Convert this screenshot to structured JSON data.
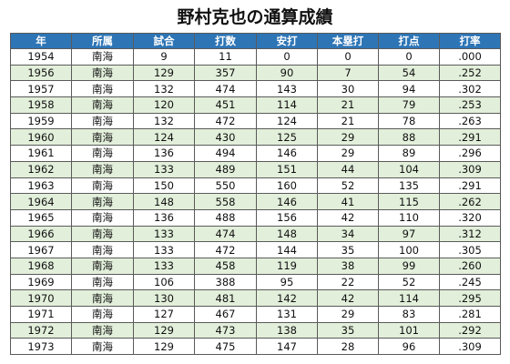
{
  "title": "野村克也の通算成績",
  "columns": [
    "年",
    "所属",
    "試合",
    "打数",
    "安打",
    "本塁打",
    "打点",
    "打率"
  ],
  "rows": [
    [
      "1954",
      "南海",
      "9",
      "11",
      "0",
      "0",
      "0",
      ".000"
    ],
    [
      "1956",
      "南海",
      "129",
      "357",
      "90",
      "7",
      "54",
      ".252"
    ],
    [
      "1957",
      "南海",
      "132",
      "474",
      "143",
      "30",
      "94",
      ".302"
    ],
    [
      "1958",
      "南海",
      "120",
      "451",
      "114",
      "21",
      "79",
      ".253"
    ],
    [
      "1959",
      "南海",
      "132",
      "472",
      "124",
      "21",
      "78",
      ".263"
    ],
    [
      "1960",
      "南海",
      "124",
      "430",
      "125",
      "29",
      "88",
      ".291"
    ],
    [
      "1961",
      "南海",
      "136",
      "494",
      "146",
      "29",
      "89",
      ".296"
    ],
    [
      "1962",
      "南海",
      "133",
      "489",
      "151",
      "44",
      "104",
      ".309"
    ],
    [
      "1963",
      "南海",
      "150",
      "550",
      "160",
      "52",
      "135",
      ".291"
    ],
    [
      "1964",
      "南海",
      "148",
      "558",
      "146",
      "41",
      "115",
      ".262"
    ],
    [
      "1965",
      "南海",
      "136",
      "488",
      "156",
      "42",
      "110",
      ".320"
    ],
    [
      "1966",
      "南海",
      "133",
      "474",
      "148",
      "34",
      "97",
      ".312"
    ],
    [
      "1967",
      "南海",
      "133",
      "472",
      "144",
      "35",
      "100",
      ".305"
    ],
    [
      "1968",
      "南海",
      "133",
      "458",
      "119",
      "38",
      "99",
      ".260"
    ],
    [
      "1969",
      "南海",
      "106",
      "388",
      "95",
      "22",
      "52",
      ".245"
    ],
    [
      "1970",
      "南海",
      "130",
      "481",
      "142",
      "42",
      "114",
      ".295"
    ],
    [
      "1971",
      "南海",
      "127",
      "467",
      "131",
      "29",
      "83",
      ".281"
    ],
    [
      "1972",
      "南海",
      "129",
      "473",
      "138",
      "35",
      "101",
      ".292"
    ],
    [
      "1973",
      "南海",
      "129",
      "475",
      "147",
      "28",
      "96",
      ".309"
    ]
  ],
  "colors": {
    "header_bg": "#2e75b6",
    "header_text": "#ffffff",
    "stripe": "#e2efda",
    "border": "#5a5a5a"
  }
}
